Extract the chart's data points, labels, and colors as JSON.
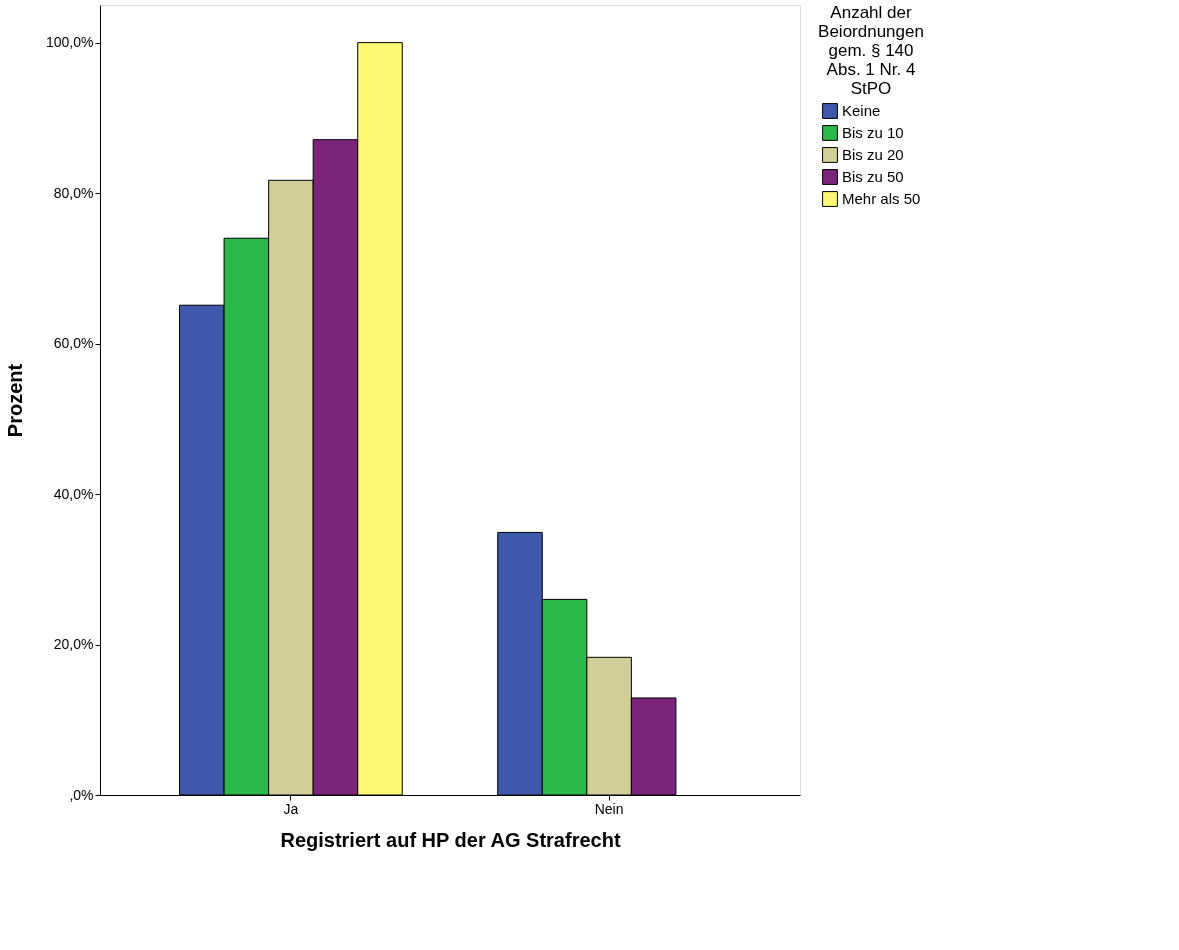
{
  "chart_data": {
    "type": "bar",
    "xlabel": "Registriert auf HP der AG Strafrecht",
    "ylabel": "Prozent",
    "legend_title": "Anzahl der Beiordnungen gem. § 140 Abs. 1 Nr. 4 StPO",
    "categories": [
      "Ja",
      "Nein"
    ],
    "series": [
      {
        "name": "Keine",
        "color": "#3e58ac",
        "values": [
          65.1,
          34.9
        ]
      },
      {
        "name": "Bis zu 10",
        "color": "#2db84a",
        "values": [
          74.0,
          26.0
        ]
      },
      {
        "name": "Bis zu 20",
        "color": "#d3ce97",
        "values": [
          81.7,
          18.3
        ]
      },
      {
        "name": "Bis zu 50",
        "color": "#7b2479",
        "values": [
          87.1,
          12.9
        ]
      },
      {
        "name": "Mehr als 50",
        "color": "#fbf873",
        "values": [
          100.0,
          null
        ]
      }
    ],
    "ylim": [
      0,
      105
    ],
    "yticks": [
      {
        "value": 0,
        "label": ",0%"
      },
      {
        "value": 20,
        "label": "20,0%"
      },
      {
        "value": 40,
        "label": "40,0%"
      },
      {
        "value": 60,
        "label": "60,0%"
      },
      {
        "value": 80,
        "label": "80,0%"
      },
      {
        "value": 100,
        "label": "100,0%"
      }
    ],
    "grid": false,
    "legend": "top right"
  }
}
